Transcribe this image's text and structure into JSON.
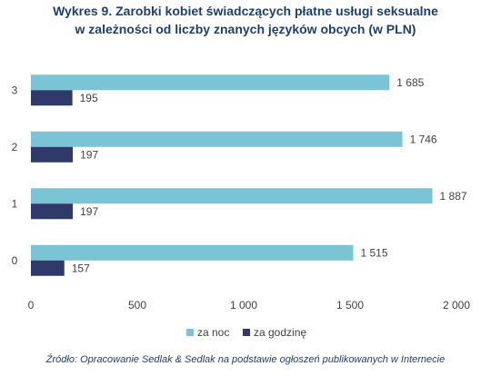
{
  "chart_data": {
    "type": "bar",
    "orientation": "horizontal",
    "title": "Wykres 9. Zarobki kobiet świadczących płatne usługi seksualne",
    "subtitle": "w zależności od liczby znanych języków obcych (w PLN)",
    "categories": [
      "3",
      "2",
      "1",
      "0"
    ],
    "series": [
      {
        "name": "za noc",
        "color": "#7ac4d6",
        "values": [
          1685,
          1746,
          1887,
          1515
        ],
        "labels": [
          "1 685",
          "1 746",
          "1 887",
          "1 515"
        ]
      },
      {
        "name": "za godzinę",
        "color": "#2f3a6b",
        "values": [
          195,
          197,
          197,
          157
        ],
        "labels": [
          "195",
          "197",
          "197",
          "157"
        ]
      }
    ],
    "xlim": [
      0,
      2000
    ],
    "xticks": [
      0,
      500,
      1000,
      1500,
      2000
    ],
    "xtick_labels": [
      "0",
      "500",
      "1 000",
      "1 500",
      "2 000"
    ],
    "grid": false,
    "legend_position": "bottom",
    "source": "Źródło: Opracowanie Sedlak & Sedlak na podstawie ogłoszeń publikowanych w Internecie"
  }
}
